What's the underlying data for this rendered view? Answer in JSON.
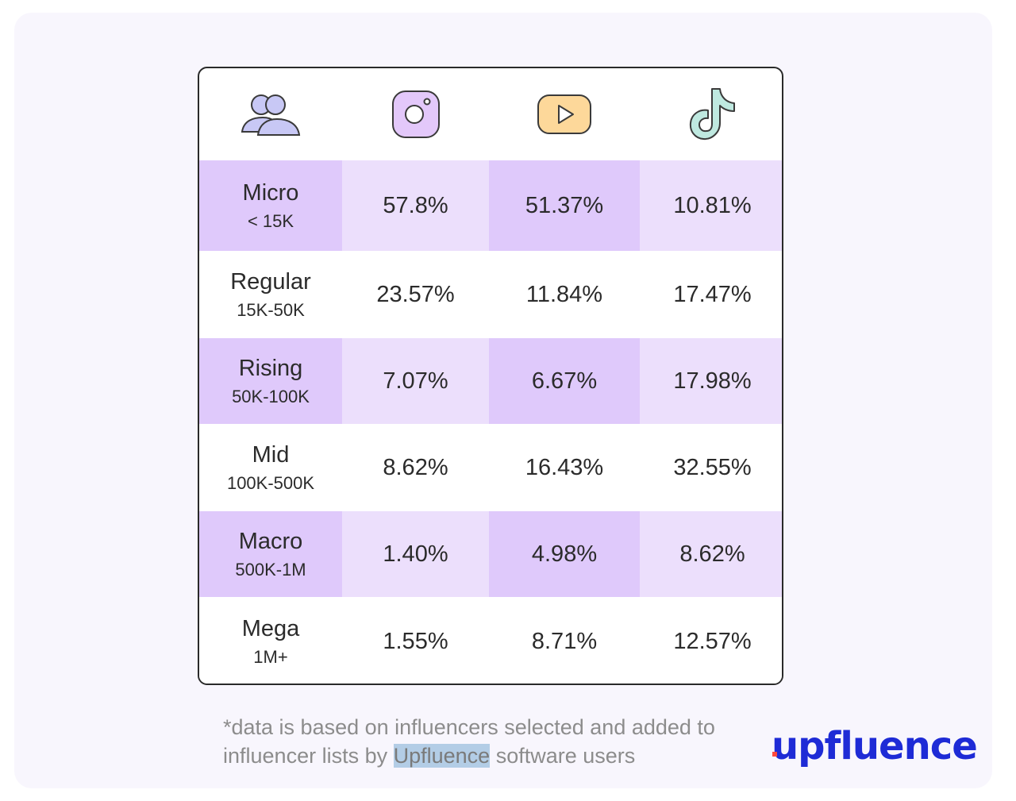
{
  "chart_data": {
    "type": "table",
    "columns": [
      "instagram-icon",
      "youtube-icon",
      "tiktok-icon"
    ],
    "rows": [
      {
        "tier": "Micro",
        "range": "< 15K",
        "values": [
          "57.8%",
          "51.37%",
          "10.81%"
        ]
      },
      {
        "tier": "Regular",
        "range": "15K-50K",
        "values": [
          "23.57%",
          "11.84%",
          "17.47%"
        ]
      },
      {
        "tier": "Rising",
        "range": "50K-100K",
        "values": [
          "7.07%",
          "6.67%",
          "17.98%"
        ]
      },
      {
        "tier": "Mid",
        "range": "100K-500K",
        "values": [
          "8.62%",
          "16.43%",
          "32.55%"
        ]
      },
      {
        "tier": "Macro",
        "range": "500K-1M",
        "values": [
          "1.40%",
          "4.98%",
          "8.62%"
        ]
      },
      {
        "tier": "Mega",
        "range": "1M+",
        "values": [
          "1.55%",
          "8.71%",
          "12.57%"
        ]
      }
    ]
  },
  "footnote": {
    "before": "*data is based on influencers selected and added to influencer lists by ",
    "highlight": "Upfluence",
    "after": " software users"
  },
  "logo": {
    "text": "upfluence"
  },
  "colors": {
    "row_purple_light": "#ecdffc",
    "row_purple_dark": "#dfc9fb",
    "instagram": "#e3c8fa",
    "youtube": "#fdd89a",
    "tiktok": "#bfe9e0",
    "users": "#c8c8f5",
    "logo": "#1e2bd6"
  }
}
